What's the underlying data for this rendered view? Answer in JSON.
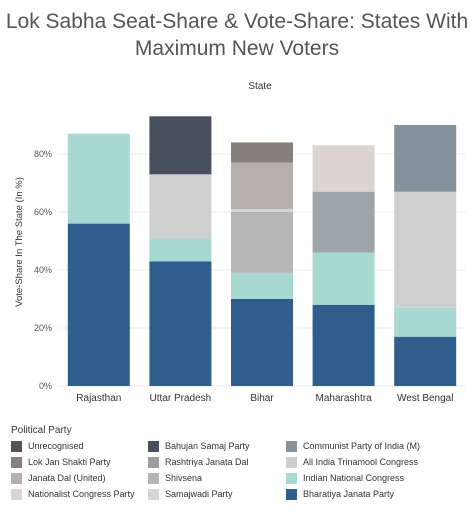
{
  "chart_data": {
    "type": "stacked bar",
    "title": "Lok Sabha Seat-Share & Vote-Share: States With Maximum New Voters",
    "title_lines": [
      "Lok Sabha Seat-Share & Vote-Share: States With",
      "Maximum New Voters"
    ],
    "column_header": "State",
    "ylabel": "Vote-Share In The State (In %)",
    "ylim": [
      0,
      100
    ],
    "yticks": [
      0,
      20,
      40,
      60,
      80
    ],
    "ytick_labels": [
      "0%",
      "20%",
      "40%",
      "60%",
      "80%"
    ],
    "grid": true,
    "categories": [
      "Rajasthan",
      "Uttar Pradesh",
      "Bihar",
      "Maharashtra",
      "West Bengal"
    ],
    "legend_title": "Political Party",
    "legend_position": "bottom",
    "series": [
      {
        "name": "Bharatiya Janata Party",
        "color": "#2f5d8c",
        "values": [
          56,
          43,
          30,
          28,
          17
        ]
      },
      {
        "name": "Indian National Congress",
        "color": "#a8d8d2",
        "values": [
          31,
          8,
          9,
          18,
          10
        ]
      },
      {
        "name": "All India Trinamool Congress",
        "color": "#cfcfcf",
        "values": [
          0,
          0,
          0,
          0,
          40
        ]
      },
      {
        "name": "Communist Party of India (M)",
        "color": "#86929b",
        "values": [
          0,
          0,
          0,
          0,
          23
        ]
      },
      {
        "name": "Samajwadi Party",
        "color": "#cfcfcf",
        "values": [
          0,
          22,
          0,
          0,
          0
        ]
      },
      {
        "name": "Bahujan Samaj Party",
        "color": "#484f5d",
        "values": [
          0,
          20,
          0,
          0,
          0
        ]
      },
      {
        "name": "Rashtriya Janata Dal",
        "color": "#b7b7b7",
        "values": [
          0,
          0,
          21,
          0,
          0
        ]
      },
      {
        "name": "Janata Dal (United)",
        "color": "#d6d6d6",
        "values": [
          0,
          0,
          1,
          0,
          0
        ]
      },
      {
        "name": "Lok Jan Shakti Party",
        "color": "#b8afaa",
        "values": [
          0,
          0,
          16,
          0,
          0
        ]
      },
      {
        "name": "Unrecognised",
        "color": "#8a807b",
        "values": [
          0,
          0,
          7,
          0,
          0
        ]
      },
      {
        "name": "Shivsena",
        "color": "#9ca5a8",
        "values": [
          0,
          0,
          0,
          21,
          0
        ]
      },
      {
        "name": "Nationalist Congress Party",
        "color": "#ddd4d0",
        "values": [
          0,
          0,
          0,
          16,
          0
        ]
      }
    ],
    "legend": [
      [
        {
          "name": "Unrecognised",
          "color": "#5b514c"
        },
        {
          "name": "Lok Jan Shakti Party",
          "color": "#8a807b"
        },
        {
          "name": "Janata Dal (United)",
          "color": "#b8afaa"
        },
        {
          "name": "Nationalist Congress Party",
          "color": "#ddd4d0"
        }
      ],
      [
        {
          "name": "Bahujan Samaj Party",
          "color": "#484f5d"
        },
        {
          "name": "Rashtriya Janata Dal",
          "color": "#9d9d9d"
        },
        {
          "name": "Shivsena",
          "color": "#b5b5b5"
        },
        {
          "name": "Samajwadi Party",
          "color": "#d6d6d6"
        }
      ],
      [
        {
          "name": "Communist Party of India (M)",
          "color": "#86929b"
        },
        {
          "name": "All India Trinamool Congress",
          "color": "#cfcfcf"
        },
        {
          "name": "Indian National Congress",
          "color": "#a8d8d2"
        },
        {
          "name": "Bharatiya Janata Party",
          "color": "#2f5d8c"
        }
      ]
    ]
  }
}
